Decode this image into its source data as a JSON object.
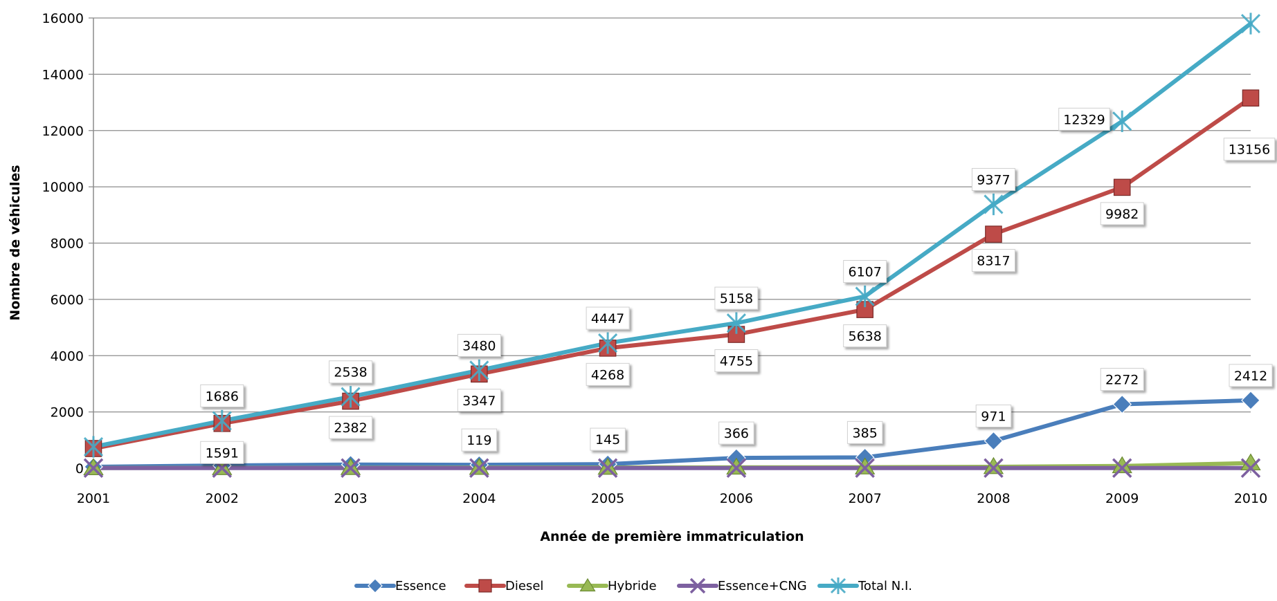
{
  "chart_data": {
    "type": "line",
    "title": "",
    "xlabel": "Année de première immatriculation",
    "ylabel": "Nombre de véhicules",
    "x": [
      "2001",
      "2002",
      "2003",
      "2004",
      "2005",
      "2006",
      "2007",
      "2008",
      "2009",
      "2010"
    ],
    "ylim": [
      0,
      16000
    ],
    "yticks": [
      0,
      2000,
      4000,
      6000,
      8000,
      10000,
      12000,
      14000,
      16000
    ],
    "grid": true,
    "legend_position": "bottom",
    "series": [
      {
        "name": "Essence",
        "color": "#4a7ebb",
        "marker": "diamond",
        "values": [
          50,
          95,
          130,
          119,
          145,
          366,
          385,
          971,
          2272,
          2412
        ],
        "labels": [
          "",
          "",
          "",
          "119",
          "145",
          "366",
          "385",
          "971",
          "2272",
          "2412"
        ]
      },
      {
        "name": "Diesel",
        "color": "#be4b48",
        "marker": "square",
        "values": [
          700,
          1591,
          2382,
          3347,
          4268,
          4755,
          5638,
          8317,
          9982,
          13156
        ],
        "labels": [
          "",
          "1591",
          "2382",
          "3347",
          "4268",
          "4755",
          "5638",
          "8317",
          "9982",
          "13156"
        ]
      },
      {
        "name": "Hybride",
        "color": "#98b954",
        "marker": "triangle",
        "values": [
          10,
          12,
          15,
          20,
          25,
          30,
          35,
          50,
          80,
          180
        ],
        "labels": [
          "",
          "",
          "",
          "",
          "",
          "",
          "",
          "",
          "",
          ""
        ]
      },
      {
        "name": "Essence+CNG",
        "color": "#7d60a0",
        "marker": "x",
        "values": [
          5,
          5,
          5,
          5,
          5,
          5,
          5,
          5,
          5,
          5
        ],
        "labels": [
          "",
          "",
          "",
          "",
          "",
          "",
          "",
          "",
          "",
          ""
        ]
      },
      {
        "name": "Total N.I.",
        "color": "#46aac5",
        "marker": "star",
        "values": [
          760,
          1686,
          2538,
          3480,
          4447,
          5158,
          6107,
          9377,
          12329,
          15800
        ],
        "labels": [
          "",
          "1686",
          "2538",
          "3480",
          "4447",
          "5158",
          "6107",
          "9377",
          "12329",
          ""
        ]
      }
    ]
  }
}
